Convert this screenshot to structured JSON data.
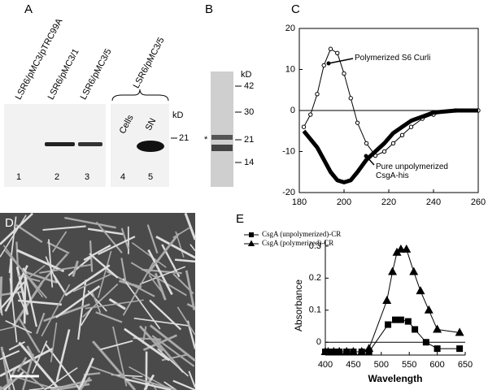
{
  "panels": {
    "A": {
      "label": "A",
      "lanes": [
        "LSR6/pMC3/pTRC99A",
        "LSR6/pMC3/1",
        "LSR6/pMC3/5",
        "LSR6/pMC3/5"
      ],
      "fractions": [
        "Cells",
        "SN"
      ],
      "unit": "kD",
      "marker": "21",
      "lane_numbers": [
        "1",
        "2",
        "3",
        "4",
        "5"
      ]
    },
    "B": {
      "label": "B",
      "unit": "kD",
      "markers": [
        "42",
        "30",
        "21",
        "14"
      ],
      "star": "*"
    },
    "D": {
      "label": "D"
    }
  },
  "chart_data": [
    {
      "type": "line",
      "label": "C",
      "x": [
        182,
        185,
        188,
        191,
        194,
        197,
        200,
        203,
        206,
        210,
        214,
        218,
        222,
        226,
        230,
        235,
        240,
        250,
        260
      ],
      "series": [
        {
          "name": "Polymerized S6 Curli",
          "color": "#000000",
          "marker": "circle",
          "line_width": 1,
          "values": [
            -4,
            -1,
            4,
            11,
            15,
            14,
            9,
            3,
            -3,
            -8,
            -11,
            -10,
            -8,
            -6,
            -4,
            -2,
            -1,
            0,
            0
          ]
        },
        {
          "name": "Pure unpolymerized CsgA-his",
          "color": "#000000",
          "marker": "none",
          "line_width": 5,
          "values": [
            -5,
            -7,
            -9,
            -12,
            -15,
            -17,
            -17.5,
            -17,
            -15,
            -12,
            -10,
            -8,
            -5.5,
            -4,
            -2.5,
            -1.5,
            -0.5,
            0,
            0
          ]
        }
      ],
      "xlim": [
        180,
        260
      ],
      "xticks": [
        180,
        200,
        220,
        240,
        260
      ],
      "ylim": [
        -20,
        20
      ],
      "yticks": [
        -20,
        -10,
        0,
        10,
        20
      ],
      "frame": "box",
      "legend": false
    },
    {
      "type": "line",
      "label": "E",
      "xlabel": "Wavelength",
      "ylabel": "Absorbance",
      "series": [
        {
          "name": "CsgA (unpolymerized)-CR",
          "color": "#000000",
          "marker": "square",
          "line_width": 1,
          "x": [
            400,
            405,
            415,
            425,
            438,
            450,
            465,
            478,
            512,
            525,
            535,
            548,
            560,
            580,
            600,
            640
          ],
          "values": [
            -0.03,
            -0.03,
            -0.03,
            -0.03,
            -0.03,
            -0.03,
            -0.03,
            -0.03,
            0.055,
            0.07,
            0.07,
            0.065,
            0.04,
            0,
            -0.02,
            -0.02
          ]
        },
        {
          "name": "CsgA (polymerized)-CR",
          "color": "#000000",
          "marker": "triangle",
          "line_width": 1,
          "x": [
            400,
            405,
            415,
            425,
            438,
            450,
            465,
            478,
            510,
            520,
            528,
            535,
            545,
            558,
            570,
            585,
            600,
            640
          ],
          "values": [
            -0.03,
            -0.03,
            -0.03,
            -0.03,
            -0.03,
            -0.03,
            -0.03,
            -0.02,
            0.13,
            0.22,
            0.28,
            0.29,
            0.29,
            0.22,
            0.16,
            0.1,
            0.04,
            0.03
          ]
        }
      ],
      "xlim": [
        400,
        650
      ],
      "xticks": [
        400,
        450,
        500,
        550,
        600,
        650
      ],
      "ylim": [
        -0.04,
        0.32
      ],
      "yticks": [
        0,
        0.1,
        0.2,
        0.3
      ],
      "frame": "axes",
      "legend": true
    }
  ]
}
